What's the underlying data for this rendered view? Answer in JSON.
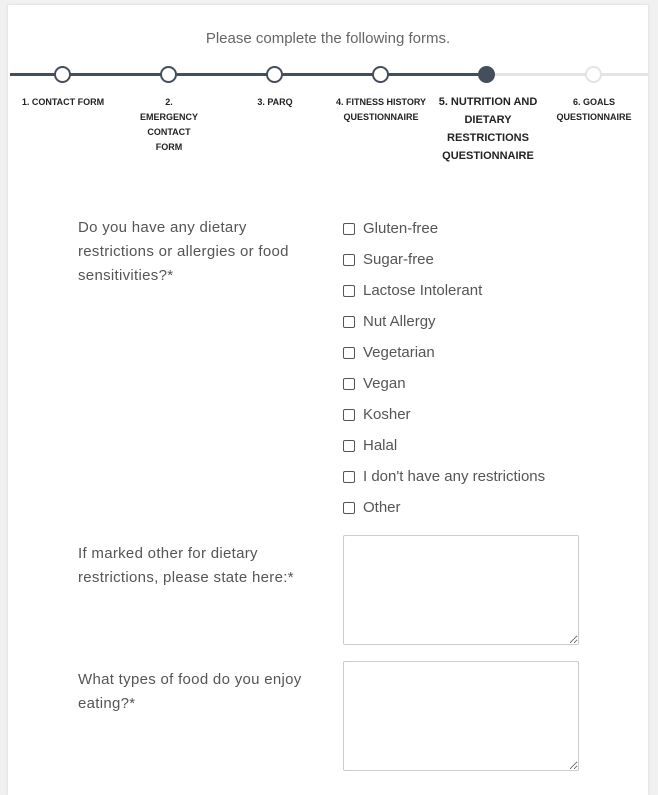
{
  "intro": "Please complete the following forms.",
  "colors": {
    "accent": "#454e5c",
    "inactive": "#e4e4e4"
  },
  "steps": [
    {
      "label": "1. CONTACT FORM",
      "state": "complete"
    },
    {
      "label": "2. EMERGENCY CONTACT FORM",
      "state": "complete"
    },
    {
      "label": "3. PARQ",
      "state": "complete"
    },
    {
      "label": "4. FITNESS HISTORY QUESTIONNAIRE",
      "state": "complete"
    },
    {
      "label": "5. NUTRITION AND DIETARY RESTRICTIONS QUESTIONNAIRE",
      "state": "active"
    },
    {
      "label": "6. GOALS QUESTIONNAIRE",
      "state": "upcoming"
    }
  ],
  "questions": {
    "dietary": {
      "label": "Do you have any dietary restrictions or allergies or food sensitivities?*",
      "options": [
        "Gluten-free",
        "Sugar-free",
        "Lactose Intolerant",
        "Nut Allergy",
        "Vegetarian",
        "Vegan",
        "Kosher",
        "Halal",
        "I don't have any restrictions",
        "Other"
      ]
    },
    "other": {
      "label": "If marked other for dietary restrictions, please state here:*",
      "value": ""
    },
    "enjoy": {
      "label": "What types of food do you enjoy eating?*",
      "value": ""
    }
  }
}
